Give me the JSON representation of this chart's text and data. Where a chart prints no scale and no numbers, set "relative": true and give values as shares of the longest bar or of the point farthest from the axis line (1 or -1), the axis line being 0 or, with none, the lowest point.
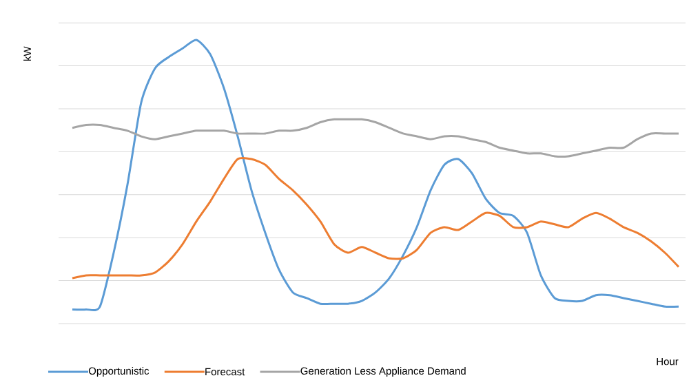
{
  "chart_data": {
    "type": "line",
    "relative": true,
    "xlabel": "Hour",
    "ylabel": "kW",
    "grid": "y",
    "legend": "bottom",
    "marker": "none",
    "line_style": "solid",
    "tick_labels": false,
    "categories": [
      null,
      null,
      null,
      null,
      null,
      null,
      null,
      null,
      null,
      null,
      null,
      null,
      null,
      null,
      null,
      null,
      null,
      null,
      null,
      null,
      null,
      null,
      null,
      null,
      null,
      null,
      null,
      null,
      null,
      null,
      null,
      null,
      null,
      null,
      null,
      null,
      null,
      null,
      null,
      null,
      null,
      null,
      null,
      null,
      null
    ],
    "series": [
      {
        "name": "Opportunistic",
        "color": "#5b9bd5",
        "values": [
          0.05,
          0.05,
          0.06,
          0.25,
          0.49,
          0.78,
          0.9,
          0.94,
          0.97,
          1.0,
          0.95,
          0.83,
          0.66,
          0.47,
          0.32,
          0.19,
          0.11,
          0.09,
          0.07,
          0.07,
          0.07,
          0.08,
          0.11,
          0.16,
          0.24,
          0.34,
          0.47,
          0.56,
          0.58,
          0.53,
          0.44,
          0.39,
          0.38,
          0.32,
          0.17,
          0.09,
          0.08,
          0.08,
          0.1,
          0.1,
          0.09,
          0.08,
          0.07,
          0.06,
          0.06
        ]
      },
      {
        "name": "Forecast",
        "color": "#ed7d31",
        "values": [
          0.16,
          0.17,
          0.17,
          0.17,
          0.17,
          0.17,
          0.18,
          0.22,
          0.28,
          0.36,
          0.43,
          0.51,
          0.58,
          0.58,
          0.56,
          0.51,
          0.47,
          0.42,
          0.36,
          0.28,
          0.25,
          0.27,
          0.25,
          0.23,
          0.23,
          0.26,
          0.32,
          0.34,
          0.33,
          0.36,
          0.39,
          0.38,
          0.34,
          0.34,
          0.36,
          0.35,
          0.34,
          0.37,
          0.39,
          0.37,
          0.34,
          0.32,
          0.29,
          0.25,
          0.2
        ]
      },
      {
        "name": "Generation Less Appliance Demand",
        "color": "#a5a5a5",
        "values": [
          0.69,
          0.7,
          0.7,
          0.69,
          0.68,
          0.66,
          0.65,
          0.66,
          0.67,
          0.68,
          0.68,
          0.68,
          0.67,
          0.67,
          0.67,
          0.68,
          0.68,
          0.69,
          0.71,
          0.72,
          0.72,
          0.72,
          0.71,
          0.69,
          0.67,
          0.66,
          0.65,
          0.66,
          0.66,
          0.65,
          0.64,
          0.62,
          0.61,
          0.6,
          0.6,
          0.59,
          0.59,
          0.6,
          0.61,
          0.62,
          0.62,
          0.65,
          0.67,
          0.67,
          0.67
        ]
      }
    ]
  }
}
